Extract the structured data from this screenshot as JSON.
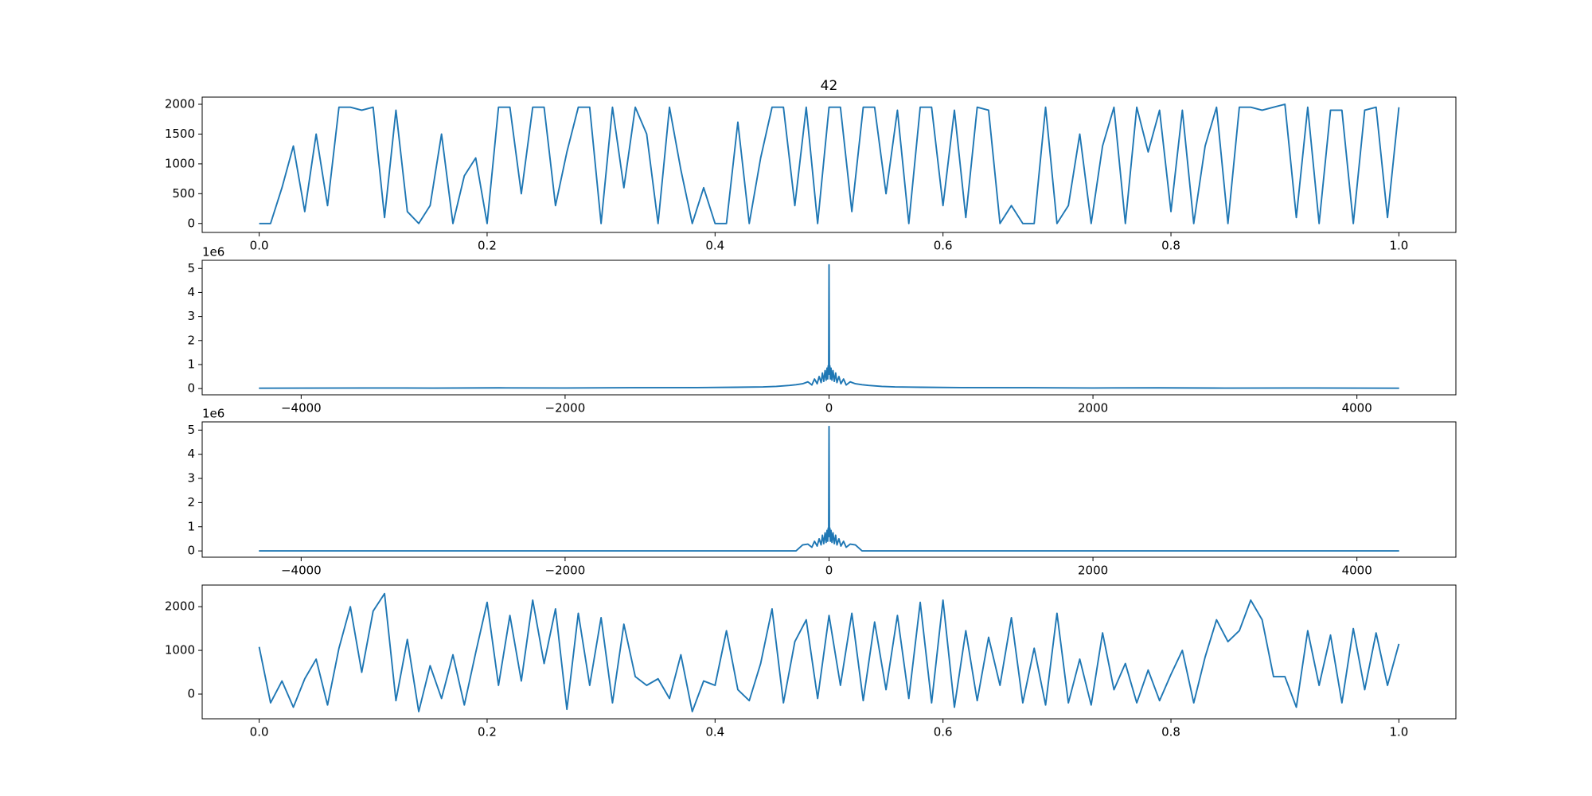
{
  "chart_data": [
    {
      "type": "line",
      "title": "42",
      "color": "#1f77b4",
      "x": [
        0,
        0.01,
        0.02,
        0.03,
        0.04,
        0.05,
        0.06,
        0.07,
        0.08,
        0.09,
        0.1,
        0.11,
        0.12,
        0.13,
        0.14,
        0.15,
        0.16,
        0.17,
        0.18,
        0.19,
        0.2,
        0.21,
        0.22,
        0.23,
        0.24,
        0.25,
        0.26,
        0.27,
        0.28,
        0.29,
        0.3,
        0.31,
        0.32,
        0.33,
        0.34,
        0.35,
        0.36,
        0.37,
        0.38,
        0.39,
        0.4,
        0.41,
        0.42,
        0.43,
        0.44,
        0.45,
        0.46,
        0.47,
        0.48,
        0.49,
        0.5,
        0.51,
        0.52,
        0.53,
        0.54,
        0.55,
        0.56,
        0.57,
        0.58,
        0.59,
        0.6,
        0.61,
        0.62,
        0.63,
        0.64,
        0.65,
        0.66,
        0.67,
        0.68,
        0.69,
        0.7,
        0.71,
        0.72,
        0.73,
        0.74,
        0.75,
        0.76,
        0.77,
        0.78,
        0.79,
        0.8,
        0.81,
        0.82,
        0.83,
        0.84,
        0.85,
        0.86,
        0.87,
        0.88,
        0.89,
        0.9,
        0.91,
        0.92,
        0.93,
        0.94,
        0.95,
        0.96,
        0.97,
        0.98,
        0.99,
        1
      ],
      "values": [
        0,
        0,
        600,
        1300,
        200,
        1500,
        300,
        1950,
        1950,
        1900,
        1950,
        100,
        1900,
        200,
        0,
        300,
        1500,
        0,
        800,
        1100,
        0,
        1950,
        1950,
        500,
        1950,
        1950,
        300,
        1200,
        1950,
        1950,
        0,
        1950,
        600,
        1950,
        1500,
        0,
        1950,
        900,
        0,
        600,
        0,
        0,
        1700,
        0,
        1100,
        1950,
        1950,
        300,
        1950,
        0,
        1950,
        1950,
        200,
        1950,
        1950,
        500,
        1900,
        0,
        1950,
        1950,
        300,
        1900,
        100,
        1950,
        1900,
        0,
        300,
        0,
        0,
        1950,
        0,
        300,
        1500,
        0,
        1300,
        1950,
        0,
        1950,
        1200,
        1900,
        200,
        1900,
        0,
        1300,
        1950,
        0,
        1950,
        1950,
        1900,
        1950,
        2000,
        100,
        1950,
        0,
        1900,
        1900,
        0,
        1900,
        1950,
        100,
        1950
      ],
      "xlim": [
        -0.05,
        1.05
      ],
      "ylim": [
        -150,
        2120
      ],
      "xticks": [
        {
          "value": 0,
          "label": "0.0"
        },
        0.2,
        0.4,
        0.6,
        0.8,
        {
          "value": 1,
          "label": "1.0"
        }
      ],
      "yticks": [
        0,
        500,
        1000,
        1500,
        2000
      ]
    },
    {
      "type": "line",
      "color": "#1f77b4",
      "y_offset_label": "1e6",
      "x": [
        -4320,
        -3500,
        -3000,
        -2500,
        -2000,
        -1500,
        -1000,
        -700,
        -500,
        -400,
        -300,
        -250,
        -200,
        -160,
        -130,
        -110,
        -90,
        -75,
        -60,
        -50,
        -40,
        -30,
        -22,
        -15,
        -10,
        -6,
        -3,
        0,
        3,
        6,
        10,
        15,
        22,
        30,
        40,
        50,
        60,
        75,
        90,
        110,
        130,
        160,
        200,
        250,
        300,
        400,
        500,
        700,
        1000,
        1500,
        2000,
        2500,
        3000,
        3500,
        4320
      ],
      "values": [
        15000,
        25000,
        20000,
        30000,
        25000,
        35000,
        40000,
        55000,
        70000,
        90000,
        130000,
        160000,
        200000,
        280000,
        150000,
        400000,
        200000,
        500000,
        250000,
        650000,
        300000,
        750000,
        350000,
        850000,
        400000,
        950000,
        600000,
        5150000,
        600000,
        950000,
        400000,
        850000,
        350000,
        750000,
        300000,
        650000,
        250000,
        500000,
        200000,
        400000,
        150000,
        280000,
        200000,
        160000,
        130000,
        90000,
        70000,
        55000,
        40000,
        35000,
        25000,
        30000,
        20000,
        25000,
        15000
      ],
      "xlim": [
        -4750,
        4750
      ],
      "ylim": [
        -260000,
        5340000
      ],
      "xticks": [
        {
          "value": -4000,
          "label": "−4000"
        },
        {
          "value": -2000,
          "label": "−2000"
        },
        0,
        2000,
        4000
      ],
      "yticks": [
        0,
        {
          "value": 1000000,
          "label": "1"
        },
        {
          "value": 2000000,
          "label": "2"
        },
        {
          "value": 3000000,
          "label": "3"
        },
        {
          "value": 4000000,
          "label": "4"
        },
        {
          "value": 5000000,
          "label": "5"
        }
      ]
    },
    {
      "type": "line",
      "color": "#1f77b4",
      "y_offset_label": "1e6",
      "x": [
        -4320,
        -3500,
        -3000,
        -2500,
        -2000,
        -1500,
        -1000,
        -700,
        -500,
        -400,
        -300,
        -250,
        -200,
        -160,
        -130,
        -110,
        -90,
        -75,
        -60,
        -50,
        -40,
        -30,
        -22,
        -15,
        -10,
        -6,
        -3,
        0,
        3,
        6,
        10,
        15,
        22,
        30,
        40,
        50,
        60,
        75,
        90,
        110,
        130,
        160,
        200,
        250,
        300,
        400,
        500,
        700,
        1000,
        1500,
        2000,
        2500,
        3000,
        3500,
        4320
      ],
      "values": [
        0,
        0,
        0,
        0,
        0,
        0,
        0,
        0,
        0,
        0,
        0,
        0,
        250000,
        280000,
        150000,
        400000,
        200000,
        500000,
        250000,
        650000,
        300000,
        750000,
        350000,
        850000,
        400000,
        950000,
        600000,
        5150000,
        600000,
        950000,
        400000,
        850000,
        350000,
        750000,
        300000,
        650000,
        250000,
        500000,
        200000,
        400000,
        150000,
        280000,
        250000,
        0,
        0,
        0,
        0,
        0,
        0,
        0,
        0,
        0,
        0,
        0,
        0
      ],
      "xlim": [
        -4750,
        4750
      ],
      "ylim": [
        -260000,
        5340000
      ],
      "xticks": [
        {
          "value": -4000,
          "label": "−4000"
        },
        {
          "value": -2000,
          "label": "−2000"
        },
        0,
        2000,
        4000
      ],
      "yticks": [
        0,
        {
          "value": 1000000,
          "label": "1"
        },
        {
          "value": 2000000,
          "label": "2"
        },
        {
          "value": 3000000,
          "label": "3"
        },
        {
          "value": 4000000,
          "label": "4"
        },
        {
          "value": 5000000,
          "label": "5"
        }
      ]
    },
    {
      "type": "line",
      "color": "#1f77b4",
      "x": [
        0,
        0.01,
        0.02,
        0.03,
        0.04,
        0.05,
        0.06,
        0.07,
        0.08,
        0.09,
        0.1,
        0.11,
        0.12,
        0.13,
        0.14,
        0.15,
        0.16,
        0.17,
        0.18,
        0.19,
        0.2,
        0.21,
        0.22,
        0.23,
        0.24,
        0.25,
        0.26,
        0.27,
        0.28,
        0.29,
        0.3,
        0.31,
        0.32,
        0.33,
        0.34,
        0.35,
        0.36,
        0.37,
        0.38,
        0.39,
        0.4,
        0.41,
        0.42,
        0.43,
        0.44,
        0.45,
        0.46,
        0.47,
        0.48,
        0.49,
        0.5,
        0.51,
        0.52,
        0.53,
        0.54,
        0.55,
        0.56,
        0.57,
        0.58,
        0.59,
        0.6,
        0.61,
        0.62,
        0.63,
        0.64,
        0.65,
        0.66,
        0.67,
        0.68,
        0.69,
        0.7,
        0.71,
        0.72,
        0.73,
        0.74,
        0.75,
        0.76,
        0.77,
        0.78,
        0.79,
        0.8,
        0.81,
        0.82,
        0.83,
        0.84,
        0.85,
        0.86,
        0.87,
        0.88,
        0.89,
        0.9,
        0.91,
        0.92,
        0.93,
        0.94,
        0.95,
        0.96,
        0.97,
        0.98,
        0.99,
        1
      ],
      "values": [
        1080,
        -200,
        300,
        -300,
        350,
        800,
        -250,
        1050,
        2000,
        500,
        1900,
        2300,
        -150,
        1250,
        -400,
        650,
        -100,
        900,
        -250,
        950,
        2100,
        200,
        1800,
        300,
        2150,
        700,
        1950,
        -350,
        1850,
        200,
        1750,
        -200,
        1600,
        400,
        200,
        350,
        -100,
        900,
        -400,
        300,
        200,
        1450,
        100,
        -150,
        700,
        1950,
        -200,
        1200,
        1700,
        -100,
        1800,
        200,
        1850,
        -150,
        1650,
        100,
        1800,
        -100,
        2100,
        -200,
        2150,
        -300,
        1450,
        -150,
        1300,
        200,
        1750,
        -200,
        1050,
        -250,
        1850,
        -200,
        800,
        -250,
        1400,
        100,
        700,
        -200,
        550,
        -150,
        450,
        1000,
        -200,
        850,
        1700,
        1200,
        1450,
        2150,
        1700,
        400,
        400,
        -300,
        1450,
        200,
        1350,
        -200,
        1500,
        100,
        1400,
        200,
        1150
      ],
      "xlim": [
        -0.05,
        1.05
      ],
      "ylim": [
        -565,
        2495
      ],
      "xticks": [
        {
          "value": 0,
          "label": "0.0"
        },
        0.2,
        0.4,
        0.6,
        0.8,
        {
          "value": 1,
          "label": "1.0"
        }
      ],
      "yticks": [
        0,
        1000,
        2000
      ]
    }
  ]
}
